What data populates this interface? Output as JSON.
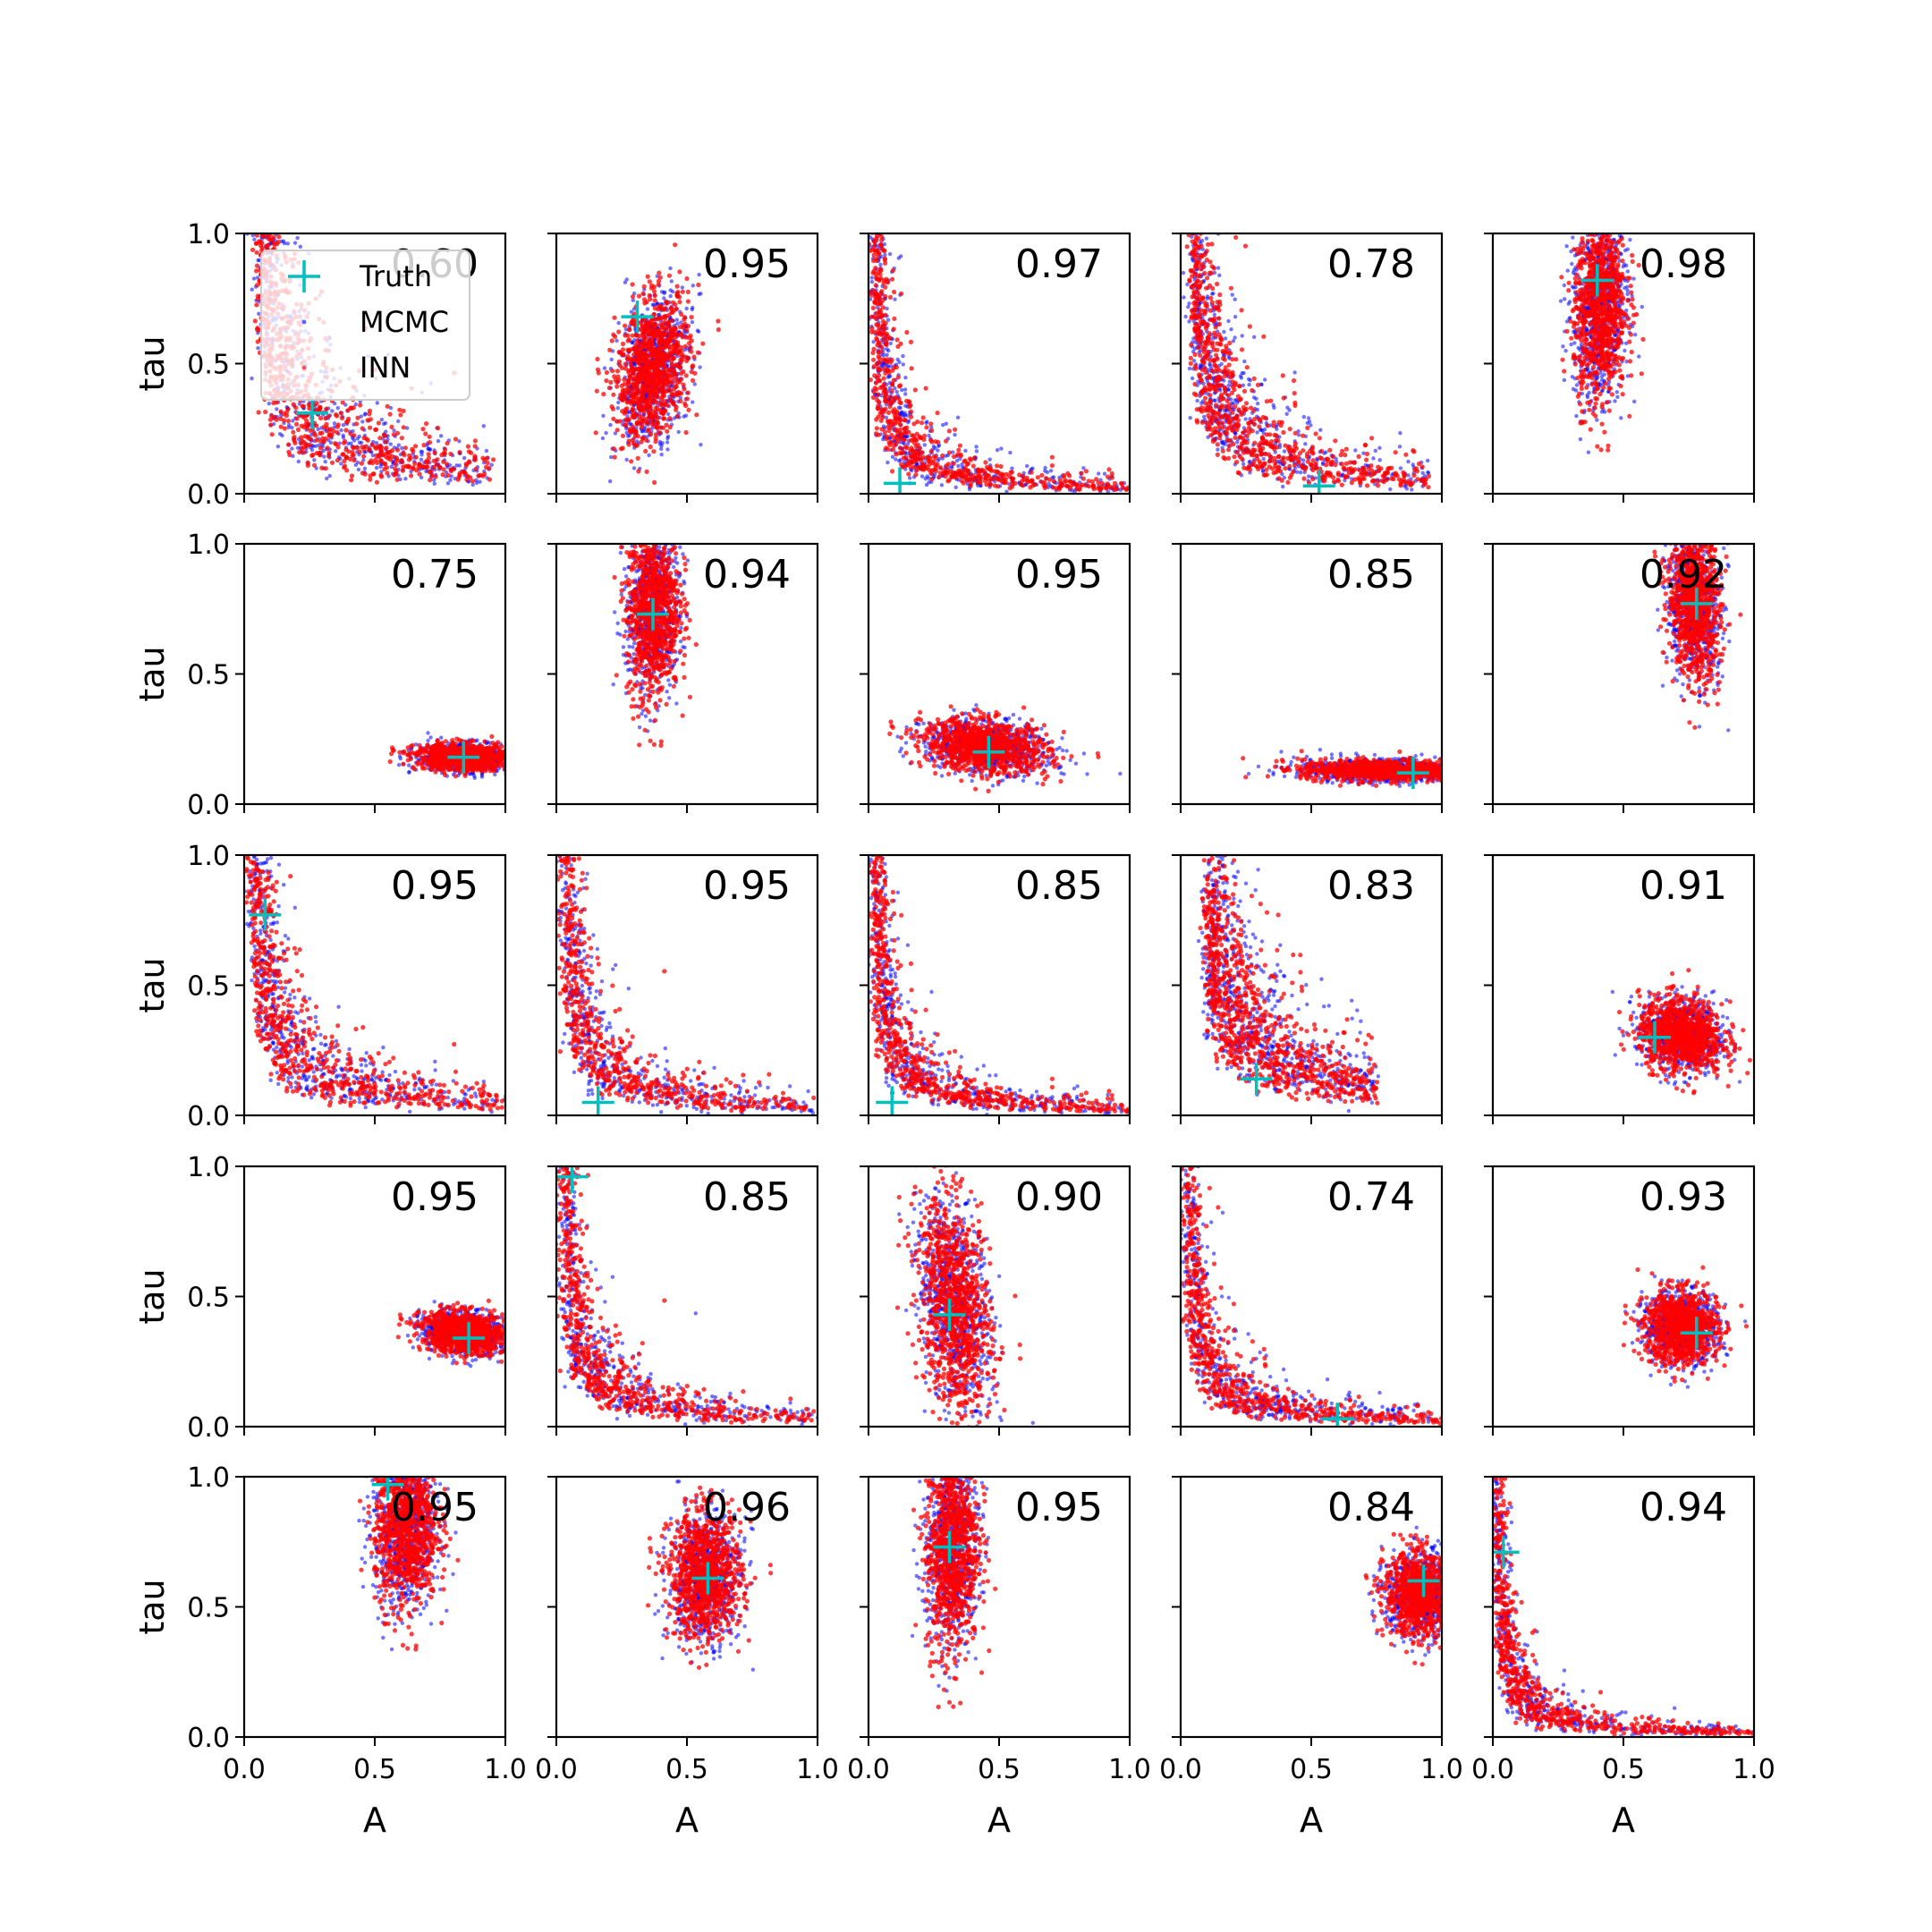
{
  "chart_data": {
    "type": "scatter",
    "layout": "5x5 grid of subplots",
    "xlabel": "A",
    "ylabel": "tau",
    "xlim": [
      0,
      1
    ],
    "ylim": [
      0,
      1
    ],
    "xticks": [
      "0.0",
      "0.5",
      "1.0"
    ],
    "yticks": [
      "0.0",
      "0.5",
      "1.0"
    ],
    "legend": {
      "placement": "upper-left of first panel",
      "entries": [
        {
          "label": "Truth",
          "marker": "plus",
          "color": "#00bfbf"
        },
        {
          "label": "MCMC",
          "marker": "dot",
          "color": "#0000ff"
        },
        {
          "label": "INN",
          "marker": "dot",
          "color": "#ff0000"
        }
      ]
    },
    "colors": {
      "truth": "#00bfbf",
      "mcmc": "#0000ff",
      "inn": "#ff0000"
    },
    "panels": [
      {
        "score": "0.60",
        "truth": [
          0.26,
          0.31
        ],
        "shape": "curve",
        "k": 0.085,
        "amin": 0.05,
        "amax": 0.95
      },
      {
        "score": "0.95",
        "truth": [
          0.31,
          0.68
        ],
        "shape": "blob",
        "center": [
          0.37,
          0.48
        ],
        "spread": [
          0.07,
          0.13
        ],
        "tilt": 0.5
      },
      {
        "score": "0.97",
        "truth": [
          0.12,
          0.04
        ],
        "shape": "curve",
        "k": 0.03,
        "amin": 0.01,
        "amax": 1.0
      },
      {
        "score": "0.78",
        "truth": [
          0.53,
          0.03
        ],
        "shape": "curve",
        "k": 0.06,
        "amin": 0.04,
        "amax": 0.95
      },
      {
        "score": "0.98",
        "truth": [
          0.4,
          0.82
        ],
        "shape": "blob",
        "center": [
          0.41,
          0.72
        ],
        "spread": [
          0.05,
          0.18
        ],
        "tilt": 0.15
      },
      {
        "score": "0.75",
        "truth": [
          0.84,
          0.18
        ],
        "shape": "blob",
        "center": [
          0.84,
          0.18
        ],
        "spread": [
          0.09,
          0.025
        ],
        "tilt": -0.15
      },
      {
        "score": "0.94",
        "truth": [
          0.37,
          0.73
        ],
        "shape": "blob",
        "center": [
          0.37,
          0.75
        ],
        "spread": [
          0.05,
          0.17
        ],
        "tilt": 0.1
      },
      {
        "score": "0.95",
        "truth": [
          0.46,
          0.2
        ],
        "shape": "blob",
        "center": [
          0.45,
          0.22
        ],
        "spread": [
          0.12,
          0.05
        ],
        "tilt": -0.4
      },
      {
        "score": "0.85",
        "truth": [
          0.89,
          0.12
        ],
        "shape": "blob",
        "center": [
          0.78,
          0.13
        ],
        "spread": [
          0.16,
          0.02
        ],
        "tilt": -0.1
      },
      {
        "score": "0.92",
        "truth": [
          0.78,
          0.77
        ],
        "shape": "blob",
        "center": [
          0.77,
          0.77
        ],
        "spread": [
          0.05,
          0.14
        ],
        "tilt": -0.3
      },
      {
        "score": "0.95",
        "truth": [
          0.08,
          0.77
        ],
        "shape": "curve",
        "k": 0.05,
        "amin": 0.02,
        "amax": 1.0
      },
      {
        "score": "0.95",
        "truth": [
          0.16,
          0.05
        ],
        "shape": "curve",
        "k": 0.04,
        "amin": 0.01,
        "amax": 1.0
      },
      {
        "score": "0.85",
        "truth": [
          0.09,
          0.05
        ],
        "shape": "curve",
        "k": 0.03,
        "amin": 0.01,
        "amax": 1.0
      },
      {
        "score": "0.83",
        "truth": [
          0.29,
          0.14
        ],
        "shape": "curve",
        "k": 0.09,
        "amin": 0.1,
        "amax": 0.75
      },
      {
        "score": "0.91",
        "truth": [
          0.62,
          0.3
        ],
        "shape": "blob",
        "center": [
          0.72,
          0.31
        ],
        "spread": [
          0.08,
          0.07
        ],
        "tilt": -0.2
      },
      {
        "score": "0.95",
        "truth": [
          0.86,
          0.34
        ],
        "shape": "blob",
        "center": [
          0.84,
          0.36
        ],
        "spread": [
          0.08,
          0.04
        ],
        "tilt": -0.3
      },
      {
        "score": "0.85",
        "truth": [
          0.06,
          0.96
        ],
        "shape": "curve",
        "k": 0.035,
        "amin": 0.01,
        "amax": 1.0
      },
      {
        "score": "0.90",
        "truth": [
          0.31,
          0.43
        ],
        "shape": "blob",
        "center": [
          0.33,
          0.46
        ],
        "spread": [
          0.07,
          0.2
        ],
        "tilt": -0.5
      },
      {
        "score": "0.74",
        "truth": [
          0.6,
          0.03
        ],
        "shape": "curve",
        "k": 0.03,
        "amin": 0.01,
        "amax": 1.0
      },
      {
        "score": "0.93",
        "truth": [
          0.78,
          0.36
        ],
        "shape": "blob",
        "center": [
          0.72,
          0.38
        ],
        "spread": [
          0.07,
          0.07
        ],
        "tilt": 0.0
      },
      {
        "score": "0.95",
        "truth": [
          0.55,
          0.97
        ],
        "shape": "blob",
        "center": [
          0.62,
          0.8
        ],
        "spread": [
          0.06,
          0.15
        ],
        "tilt": 0.1
      },
      {
        "score": "0.96",
        "truth": [
          0.58,
          0.61
        ],
        "shape": "blob",
        "center": [
          0.57,
          0.62
        ],
        "spread": [
          0.07,
          0.12
        ],
        "tilt": 0.0
      },
      {
        "score": "0.95",
        "truth": [
          0.31,
          0.73
        ],
        "shape": "blob",
        "center": [
          0.32,
          0.73
        ],
        "spread": [
          0.05,
          0.2
        ],
        "tilt": 0.1
      },
      {
        "score": "0.84",
        "truth": [
          0.93,
          0.6
        ],
        "shape": "blob",
        "center": [
          0.92,
          0.55
        ],
        "spread": [
          0.07,
          0.08
        ],
        "tilt": 0.0
      },
      {
        "score": "0.94",
        "truth": [
          0.04,
          0.71
        ],
        "shape": "curve",
        "k": 0.02,
        "amin": 0.005,
        "amax": 1.0
      }
    ]
  }
}
